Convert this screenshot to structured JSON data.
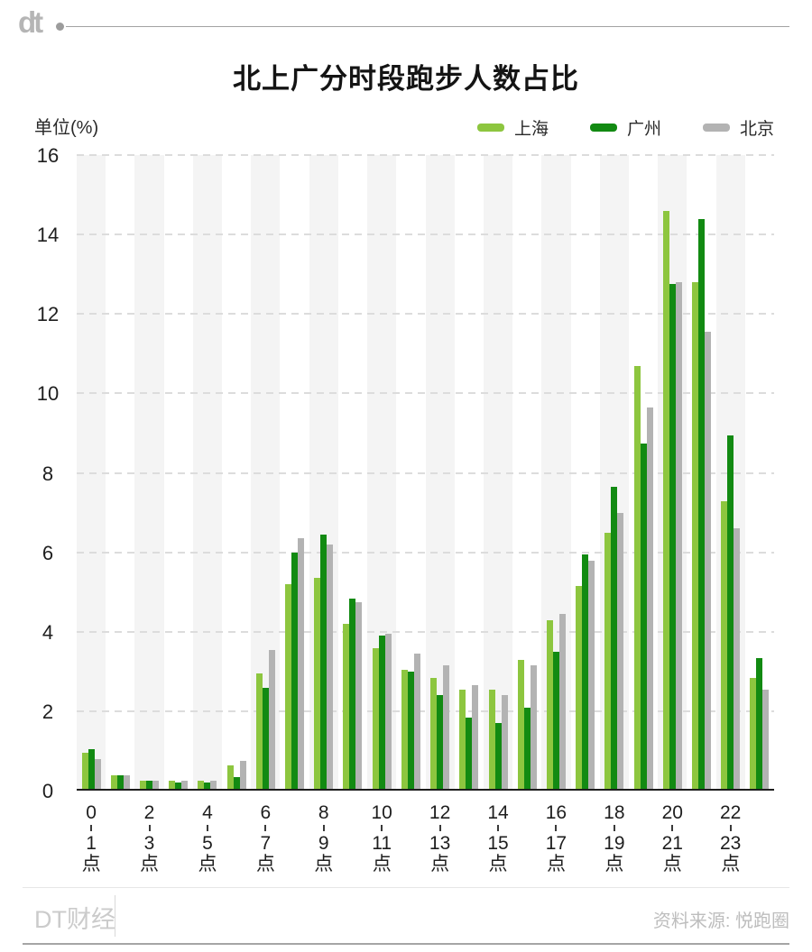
{
  "header": {
    "logo_text": "dt",
    "title": "北上广分时段跑步人数占比"
  },
  "chart_data": {
    "type": "bar",
    "title": "北上广分时段跑步人数占比",
    "unit_label": "单位(%)",
    "ylim": [
      0,
      16
    ],
    "yticks": [
      0,
      2,
      4,
      6,
      8,
      10,
      12,
      14,
      16
    ],
    "grid": "dashed horizontal lines, alternating light-gray vertical bands on even hour bins",
    "legend_position": "top-right",
    "categories_hours": [
      0,
      1,
      2,
      3,
      4,
      5,
      6,
      7,
      8,
      9,
      10,
      11,
      12,
      13,
      14,
      15,
      16,
      17,
      18,
      19,
      20,
      21,
      22,
      23
    ],
    "x_tick_labels": [
      "0-1点",
      "2-3点",
      "4-5点",
      "6-7点",
      "8-9点",
      "10-11点",
      "12-13点",
      "14-15点",
      "16-17点",
      "18-19点",
      "20-21点",
      "22-23点"
    ],
    "x_tick_indices": [
      0,
      2,
      4,
      6,
      8,
      10,
      12,
      14,
      16,
      18,
      20,
      22
    ],
    "series": [
      {
        "name": "上海",
        "color": "#8dc63f",
        "values": [
          0.9,
          0.35,
          0.2,
          0.2,
          0.2,
          0.6,
          2.9,
          5.15,
          5.3,
          4.15,
          3.55,
          3.0,
          2.8,
          2.5,
          2.5,
          3.25,
          4.25,
          5.1,
          6.45,
          10.65,
          14.55,
          12.75,
          7.25,
          2.8
        ]
      },
      {
        "name": "广州",
        "color": "#128a12",
        "values": [
          1.0,
          0.35,
          0.2,
          0.15,
          0.15,
          0.3,
          2.55,
          5.95,
          6.4,
          4.8,
          3.85,
          2.95,
          2.35,
          1.8,
          1.65,
          2.05,
          3.45,
          5.9,
          7.6,
          8.7,
          12.7,
          14.35,
          8.9,
          3.3
        ]
      },
      {
        "name": "北京",
        "color": "#b3b3b3",
        "values": [
          0.75,
          0.35,
          0.2,
          0.2,
          0.2,
          0.7,
          3.5,
          6.3,
          6.15,
          4.7,
          3.9,
          3.4,
          3.1,
          2.6,
          2.35,
          3.1,
          4.4,
          5.75,
          6.95,
          9.6,
          12.75,
          11.5,
          6.55,
          2.5
        ]
      }
    ]
  },
  "footer": {
    "brand": "DT财经",
    "source": "资料来源: 悦跑圈"
  }
}
